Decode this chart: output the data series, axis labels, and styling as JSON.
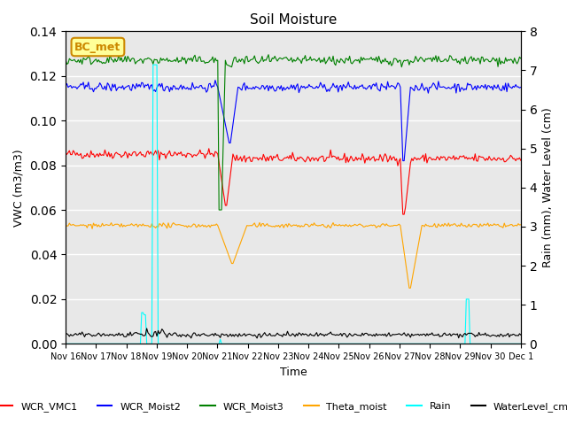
{
  "title": "Soil Moisture",
  "ylabel_left": "VWC (m3/m3)",
  "ylabel_right": "Rain (mm), Water Level (cm)",
  "xlabel": "Time",
  "xlim_days": [
    0,
    15
  ],
  "ylim_left": [
    0,
    0.14
  ],
  "ylim_right": [
    0.0,
    8.0
  ],
  "yticks_left": [
    0.0,
    0.02,
    0.04,
    0.06,
    0.08,
    0.1,
    0.12,
    0.14
  ],
  "yticks_right": [
    0.0,
    1.0,
    2.0,
    3.0,
    4.0,
    5.0,
    6.0,
    7.0,
    8.0
  ],
  "xtick_labels": [
    "Nov 16",
    "Nov 17",
    "Nov 18",
    "Nov 19",
    "Nov 20",
    "Nov 21",
    "Nov 22",
    "Nov 23",
    "Nov 24",
    "Nov 25",
    "Nov 26",
    "Nov 27",
    "Nov 28",
    "Nov 29",
    "Nov 30",
    "Dec 1"
  ],
  "background_color": "#e8e8e8",
  "legend_entries": [
    "WCR_VMC1",
    "WCR_Moist2",
    "WCR_Moist3",
    "Theta_moist",
    "Rain",
    "WaterLevel_cm"
  ],
  "legend_colors": [
    "red",
    "blue",
    "green",
    "orange",
    "cyan",
    "black"
  ],
  "annotation_text": "BC_met",
  "annotation_color": "#cc8800",
  "annotation_bg": "#ffff99",
  "grid_color": "white"
}
